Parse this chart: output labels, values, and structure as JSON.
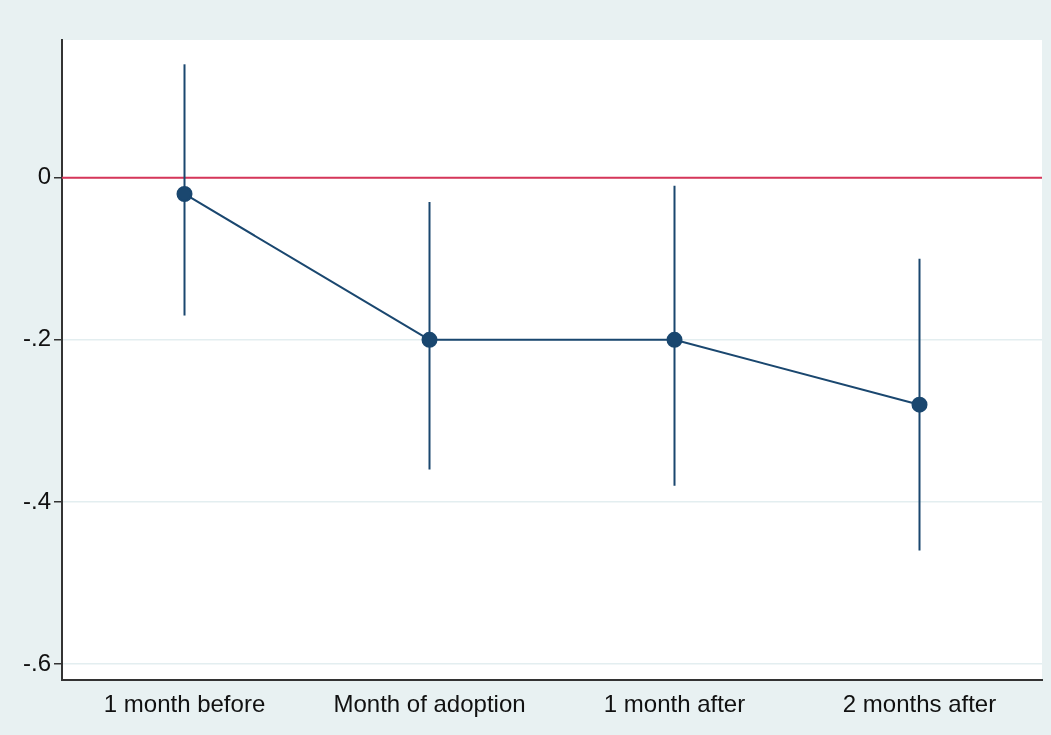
{
  "chart_data": {
    "type": "line",
    "categories": [
      "1 month before",
      "Month of adoption",
      "1 month after",
      "2 months after"
    ],
    "series": [
      {
        "color": "#1a476f",
        "values": [
          -0.02,
          -0.2,
          -0.2,
          -0.28
        ],
        "errors": [
          [
            -0.17,
            0.14
          ],
          [
            -0.36,
            -0.03
          ],
          [
            -0.38,
            -0.01
          ],
          [
            -0.46,
            -0.1
          ]
        ]
      }
    ],
    "ylim": [
      -0.62,
      0.17
    ],
    "yticks": [
      0,
      {
        "value": -0.2,
        "label": "-.2"
      },
      {
        "value": -0.4,
        "label": "-.4"
      },
      {
        "value": -0.6,
        "label": "-.6"
      }
    ],
    "ref_lines": [
      {
        "axis": "y",
        "value": 0,
        "color": "#d6365a"
      }
    ],
    "grid": "y",
    "marker": "circle",
    "legend": false
  }
}
